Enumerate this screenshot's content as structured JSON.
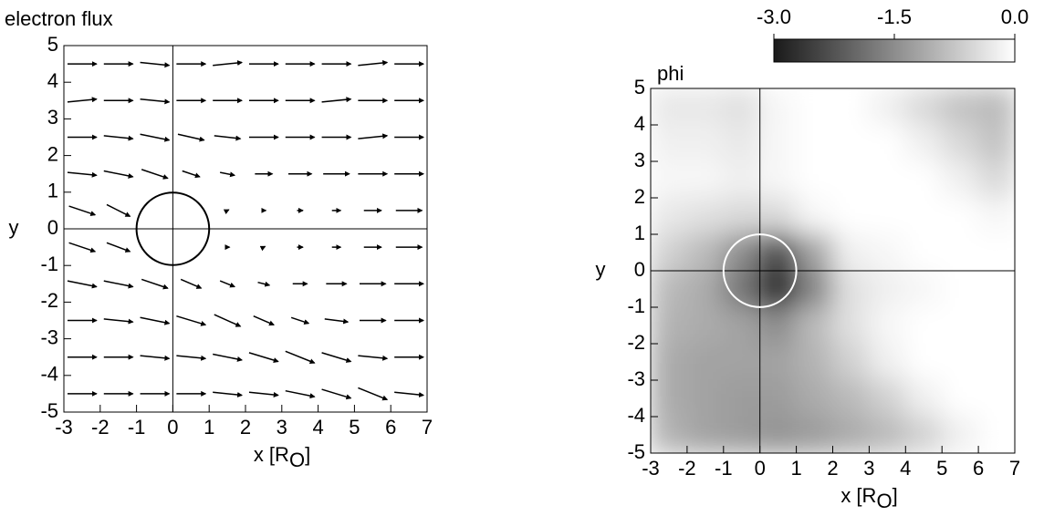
{
  "chart_data": [
    {
      "type": "quiver",
      "title": "electron flux",
      "ylabel": "y",
      "xlabel": "x [R",
      "xlabel_sub": "O",
      "xlabel_end": "]",
      "xlim": [
        -3,
        7
      ],
      "ylim": [
        -5,
        5
      ],
      "xticks": [
        -3,
        -2,
        -1,
        0,
        1,
        2,
        3,
        4,
        5,
        6,
        7
      ],
      "yticks": [
        -5,
        -4,
        -3,
        -2,
        -1,
        0,
        1,
        2,
        3,
        4,
        5
      ],
      "body_radius": 1,
      "color": "#000000",
      "x": [
        -2.5,
        -1.5,
        -0.5,
        0.5,
        1.5,
        2.5,
        3.5,
        4.5,
        5.5,
        6.5
      ],
      "y": [
        4.5,
        3.5,
        2.5,
        1.5,
        0.5,
        -0.5,
        -1.5,
        -2.5,
        -3.5,
        -4.5
      ],
      "u": [
        [
          1,
          1,
          1,
          1,
          1,
          1,
          1,
          1,
          1,
          1
        ],
        [
          1,
          1,
          1,
          1,
          1,
          1,
          1,
          1,
          1,
          1
        ],
        [
          1,
          1,
          1,
          0.9,
          0.9,
          1,
          1,
          1,
          1,
          1
        ],
        [
          1,
          1,
          0.9,
          0.6,
          0.5,
          0.6,
          0.8,
          0.9,
          1,
          1
        ],
        [
          0.9,
          0.8,
          null,
          null,
          0.1,
          0.15,
          0.2,
          0.3,
          0.6,
          0.9
        ],
        [
          0.9,
          0.8,
          null,
          null,
          0.15,
          0.1,
          0.2,
          0.3,
          0.6,
          0.9
        ],
        [
          1,
          1,
          0.9,
          0.7,
          0.5,
          0.4,
          0.5,
          0.7,
          0.9,
          1
        ],
        [
          1,
          1,
          1,
          1,
          0.9,
          0.7,
          0.6,
          0.8,
          0.9,
          1
        ],
        [
          1,
          1,
          1,
          1,
          1,
          1,
          1,
          1,
          1,
          1
        ],
        [
          1,
          1,
          1,
          1,
          1,
          1,
          1,
          1,
          1,
          1
        ]
      ],
      "v": [
        [
          0,
          0,
          -0.1,
          0,
          0.1,
          0,
          0,
          0,
          0.1,
          0
        ],
        [
          0.1,
          0,
          -0.1,
          0,
          0,
          0,
          0,
          0.1,
          0,
          0
        ],
        [
          0,
          -0.1,
          -0.2,
          -0.2,
          -0.1,
          0,
          0,
          0,
          0.1,
          0
        ],
        [
          -0.1,
          -0.2,
          -0.3,
          -0.2,
          -0.1,
          0,
          0,
          0,
          0,
          0
        ],
        [
          -0.3,
          -0.4,
          null,
          null,
          0.05,
          0,
          0,
          0,
          0,
          0
        ],
        [
          -0.3,
          -0.3,
          null,
          null,
          0,
          0.05,
          0,
          0,
          0,
          0
        ],
        [
          -0.2,
          -0.2,
          -0.3,
          -0.3,
          -0.2,
          -0.1,
          0,
          0,
          0,
          0
        ],
        [
          0,
          -0.1,
          -0.2,
          -0.3,
          -0.4,
          -0.3,
          -0.2,
          -0.1,
          0,
          0
        ],
        [
          0,
          0,
          -0.1,
          -0.1,
          -0.2,
          -0.3,
          -0.4,
          -0.3,
          -0.1,
          0
        ],
        [
          0,
          0,
          0,
          0,
          -0.1,
          -0.1,
          -0.2,
          -0.3,
          -0.4,
          -0.1
        ]
      ]
    },
    {
      "type": "heatmap",
      "title": "phi",
      "ylabel": "y",
      "xlabel": "x [R",
      "xlabel_sub": "O",
      "xlabel_end": "]",
      "xlim": [
        -3,
        7
      ],
      "ylim": [
        -5,
        5
      ],
      "xticks": [
        -3,
        -2,
        -1,
        0,
        1,
        2,
        3,
        4,
        5,
        6,
        7
      ],
      "yticks": [
        -5,
        -4,
        -3,
        -2,
        -1,
        0,
        1,
        2,
        3,
        4,
        5
      ],
      "body_radius": 1,
      "clim": [
        -3,
        0
      ],
      "colormap": [
        "#1a1a1a",
        "#ffffff"
      ],
      "cticks": [
        {
          "value": -3,
          "label": "-3.0"
        },
        {
          "value": -1.5,
          "label": "-1.5"
        },
        {
          "value": 0,
          "label": "0.0"
        }
      ],
      "x": [
        -2.5,
        -1.5,
        -0.5,
        0.5,
        1.5,
        2.5,
        3.5,
        4.5,
        5.5,
        6.5
      ],
      "y": [
        4.5,
        3.5,
        2.5,
        1.5,
        0.5,
        -0.5,
        -1.5,
        -2.5,
        -3.5,
        -4.5
      ],
      "phi": [
        [
          -0.3,
          -0.3,
          -0.4,
          -0.1,
          0,
          0,
          -0.2,
          -0.5,
          -0.8,
          -0.9
        ],
        [
          -0.2,
          -0.2,
          -0.3,
          -0.1,
          0,
          0,
          0,
          -0.2,
          -0.5,
          -0.8
        ],
        [
          -0.1,
          -0.1,
          -0.2,
          -0.1,
          0,
          0,
          0,
          0,
          -0.2,
          -0.5
        ],
        [
          -0.3,
          -0.4,
          -0.5,
          -0.5,
          -0.1,
          0,
          0,
          0,
          0,
          -0.1
        ],
        [
          -0.6,
          -0.9,
          -1.5,
          -2.4,
          -1.2,
          -0.2,
          -0.1,
          0,
          0,
          0
        ],
        [
          -0.9,
          -1.1,
          -1.8,
          -2.9,
          -1.6,
          -0.4,
          -0.2,
          -0.1,
          0,
          0
        ],
        [
          -1.0,
          -1.1,
          -1.2,
          -1.5,
          -0.9,
          -0.4,
          -0.1,
          0,
          0,
          0
        ],
        [
          -1.1,
          -1.2,
          -1.2,
          -1.2,
          -1.0,
          -0.6,
          -0.2,
          0,
          0,
          0
        ],
        [
          -1.1,
          -1.2,
          -1.3,
          -1.3,
          -1.1,
          -0.9,
          -0.6,
          -0.2,
          0,
          0
        ],
        [
          -1.0,
          -1.2,
          -1.3,
          -1.4,
          -1.3,
          -1.1,
          -0.9,
          -0.6,
          -0.2,
          0
        ]
      ]
    }
  ]
}
